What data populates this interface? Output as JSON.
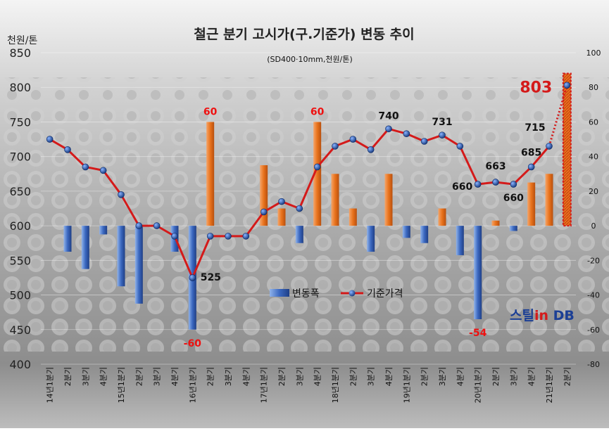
{
  "chart_data": {
    "type": "bar+line",
    "title": "철근 분기 고시가(구.기준가) 변동 추이",
    "subtitle": "(SD400·10mm,천원/톤)",
    "y_left_label": "천원/톤",
    "y_left_range": [
      400,
      850
    ],
    "y_left_ticks": [
      "400",
      "450",
      "500",
      "550",
      "600",
      "650",
      "700",
      "750",
      "800",
      "850"
    ],
    "y_right_range": [
      -80,
      100
    ],
    "y_right_ticks": [
      "-80",
      "-60",
      "-40",
      "-20",
      "0",
      "20",
      "40",
      "60",
      "80",
      "100"
    ],
    "categories": [
      "14년1분기",
      "2분기",
      "3분기",
      "4분기",
      "15년1분기",
      "2분기",
      "3분기",
      "4분기",
      "16년1분기",
      "2분기",
      "3분기",
      "4분기",
      "17년1분기",
      "2분기",
      "3분기",
      "4분기",
      "18년1분기",
      "2분기",
      "3분기",
      "4분기",
      "19년1분기",
      "2분기",
      "3분기",
      "4분기",
      "20년1분기",
      "2분기",
      "3분기",
      "4분기",
      "21년1분기",
      "2분기"
    ],
    "series": [
      {
        "name": "변동폭",
        "type": "bar",
        "axis": "right",
        "color": "#3a63b8",
        "values": [
          0,
          -15,
          -25,
          -5,
          -35,
          -45,
          0,
          -15,
          -60,
          60,
          0,
          0,
          35,
          10,
          -10,
          60,
          30,
          10,
          -15,
          30,
          -7,
          -10,
          10,
          -17,
          -54,
          3,
          -3,
          25,
          30,
          88
        ]
      },
      {
        "name": "기준가격",
        "type": "line",
        "axis": "left",
        "color": "#d41a1a",
        "values": [
          725,
          710,
          685,
          680,
          645,
          600,
          600,
          585,
          525,
          585,
          585,
          585,
          620,
          635,
          625,
          685,
          715,
          725,
          710,
          740,
          733,
          722,
          731,
          715,
          660,
          663,
          660,
          685,
          715,
          803
        ]
      }
    ],
    "data_labels": [
      {
        "index": 8,
        "series": "변동폭",
        "text": "-60",
        "color": "#ee1111"
      },
      {
        "index": 9,
        "series": "변동폭",
        "text": "60",
        "color": "#ee1111"
      },
      {
        "index": 15,
        "series": "변동폭",
        "text": "60",
        "color": "#ee1111"
      },
      {
        "index": 24,
        "series": "변동폭",
        "text": "-54",
        "color": "#ee1111"
      },
      {
        "index": 8,
        "series": "기준가격",
        "text": "525",
        "color": "#111"
      },
      {
        "index": 19,
        "series": "기준가격",
        "text": "740",
        "color": "#111"
      },
      {
        "index": 22,
        "series": "기준가격",
        "text": "731",
        "color": "#111"
      },
      {
        "index": 24,
        "series": "기준가격",
        "text": "660",
        "color": "#111"
      },
      {
        "index": 25,
        "series": "기준가격",
        "text": "663",
        "color": "#111"
      },
      {
        "index": 26,
        "series": "기준가격",
        "text": "660",
        "color": "#111"
      },
      {
        "index": 27,
        "series": "기준가격",
        "text": "685",
        "color": "#111"
      },
      {
        "index": 28,
        "series": "기준가격",
        "text": "715",
        "color": "#111"
      },
      {
        "index": 29,
        "series": "기준가격",
        "text": "803",
        "color": "#d41a1a"
      }
    ],
    "legend_position": "center-right",
    "grid": true
  },
  "brand": {
    "logo_text": "스틸in DB"
  }
}
